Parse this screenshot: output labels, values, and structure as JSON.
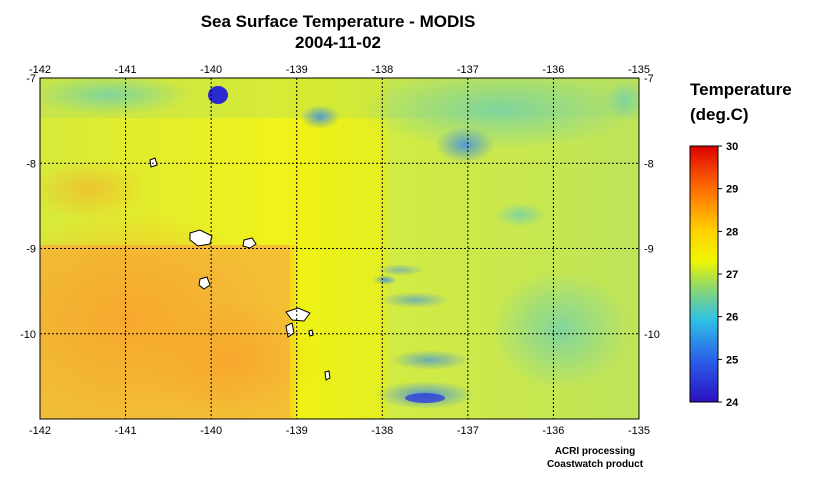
{
  "title": "Sea Surface Temperature - MODIS",
  "subtitle": "2004-11-02",
  "legend": {
    "title_line1": "Temperature",
    "title_line2": "(deg.C)",
    "min": 24,
    "max": 30,
    "ticks": [
      "30",
      "29",
      "28",
      "27",
      "26",
      "25",
      "24"
    ],
    "colors": [
      "#dd0000",
      "#ff7a00",
      "#ffcc00",
      "#f5f500",
      "#9edc5a",
      "#3ec4d8",
      "#2a6ae8",
      "#2b14c8"
    ]
  },
  "map": {
    "lon_ticks": [
      "-142",
      "-141",
      "-140",
      "-139",
      "-138",
      "-137",
      "-136",
      "-135"
    ],
    "lat_ticks": [
      "-7",
      "-8",
      "-9",
      "-10"
    ],
    "lon_range": [
      -142,
      -135
    ],
    "lat_range": [
      -11,
      -7
    ],
    "grid": "dashed",
    "land_color": "#ffffff"
  },
  "credits": {
    "line1": "ACRI processing",
    "line2": "Coastwatch product"
  }
}
